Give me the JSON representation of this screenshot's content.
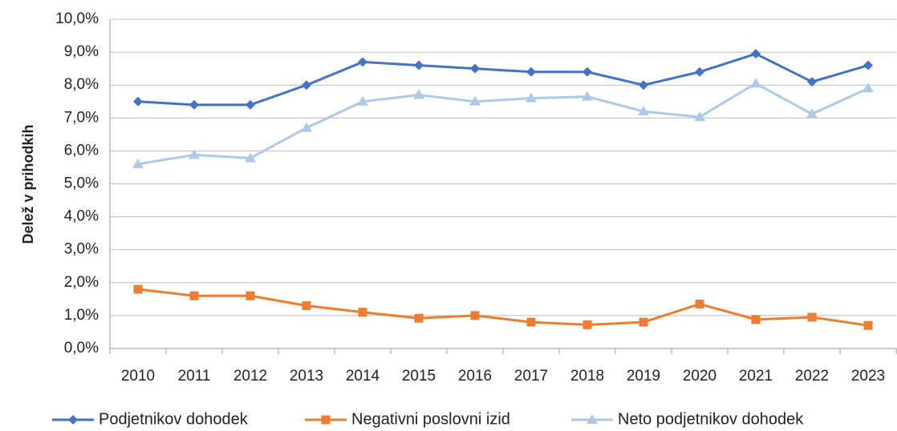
{
  "chart_data": {
    "type": "line",
    "y_label": "Delež v prihodkih",
    "categories": [
      "2010",
      "2011",
      "2012",
      "2013",
      "2014",
      "2015",
      "2016",
      "2017",
      "2018",
      "2019",
      "2020",
      "2021",
      "2022",
      "2023"
    ],
    "series": [
      {
        "name": "Podjetnikov dohodek",
        "color": "#4472c4",
        "marker": "diamond",
        "values": [
          7.5,
          7.4,
          7.4,
          8.0,
          8.7,
          8.6,
          8.5,
          8.4,
          8.4,
          8.0,
          8.4,
          8.95,
          8.1,
          8.6
        ]
      },
      {
        "name": "Negativni poslovni izid",
        "color": "#ed7d31",
        "marker": "square",
        "values": [
          1.8,
          1.6,
          1.6,
          1.3,
          1.1,
          0.92,
          1.0,
          0.8,
          0.72,
          0.8,
          1.35,
          0.88,
          0.95,
          0.7
        ]
      },
      {
        "name": "Neto podjetnikov dohodek",
        "color": "#adc9e8",
        "marker": "triangle",
        "values": [
          5.6,
          5.88,
          5.78,
          6.7,
          7.5,
          7.7,
          7.5,
          7.6,
          7.65,
          7.2,
          7.03,
          8.05,
          7.12,
          7.9
        ]
      }
    ],
    "ylim": [
      0,
      10
    ],
    "yticks": [
      {
        "value": 0,
        "label": "0,0%"
      },
      {
        "value": 1,
        "label": "1,0%"
      },
      {
        "value": 2,
        "label": "2,0%"
      },
      {
        "value": 3,
        "label": "3,0%"
      },
      {
        "value": 4,
        "label": "4,0%"
      },
      {
        "value": 5,
        "label": "5,0%"
      },
      {
        "value": 6,
        "label": "6,0%"
      },
      {
        "value": 7,
        "label": "7,0%"
      },
      {
        "value": 8,
        "label": "8,0%"
      },
      {
        "value": 9,
        "label": "9,0%"
      },
      {
        "value": 10,
        "label": "10,0%"
      }
    ],
    "grid": true,
    "legend": "bottom"
  }
}
